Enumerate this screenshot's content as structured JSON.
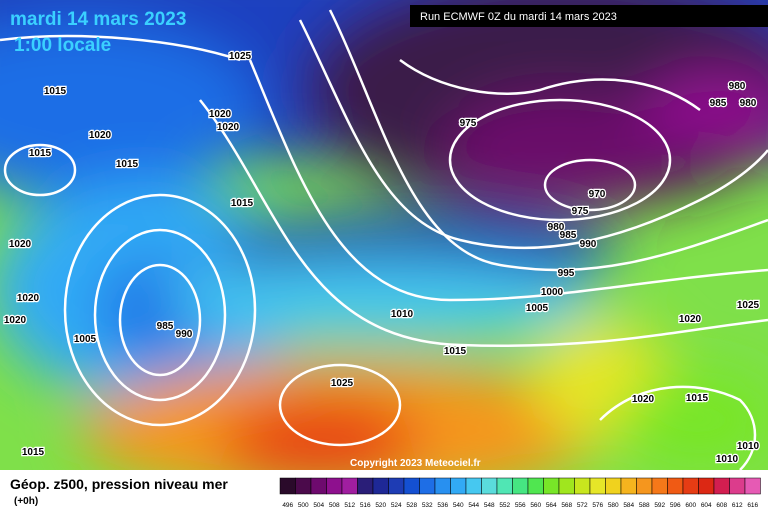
{
  "header": {
    "date": "mardi 14 mars 2023",
    "time": "1:00 locale",
    "run": "Run ECMWF 0Z du mardi 14 mars 2023"
  },
  "isobar_labels": [
    1025,
    1015,
    1020,
    1015,
    1015,
    1020,
    1020,
    1015,
    1020,
    1020,
    1020,
    985,
    990,
    1005,
    1010,
    1015,
    1025,
    975,
    970,
    975,
    980,
    985,
    990,
    995,
    1000,
    1005,
    1020,
    1025,
    1020,
    1015,
    1010,
    1010,
    980,
    985,
    980,
    1015
  ],
  "footer": {
    "field": "Géop. z500, pression niveau mer",
    "lead": "(+0h)",
    "copyright": "Copyright 2023 Meteociel.fr"
  },
  "legend": {
    "values": [
      496,
      500,
      504,
      508,
      512,
      516,
      520,
      524,
      528,
      532,
      536,
      540,
      544,
      548,
      552,
      556,
      560,
      564,
      568,
      572,
      576,
      580,
      584,
      588,
      592,
      596,
      600,
      604,
      608,
      612,
      616
    ],
    "colors": [
      "#2a0a2a",
      "#4b0a4b",
      "#6e0a6e",
      "#8e108e",
      "#a01ea0",
      "#2a1e78",
      "#1e2896",
      "#1e3cb4",
      "#1450d2",
      "#1e6ee6",
      "#2890f0",
      "#32aaf5",
      "#46c8f0",
      "#5adcdc",
      "#50e6b4",
      "#46e682",
      "#50e650",
      "#78e628",
      "#a0e61e",
      "#c8e61e",
      "#e6e628",
      "#f0d21e",
      "#f5b41e",
      "#f5961e",
      "#f57819",
      "#f05a14",
      "#e63c14",
      "#dc2814",
      "#d21e50",
      "#dc3c8c",
      "#e65ab4"
    ]
  }
}
